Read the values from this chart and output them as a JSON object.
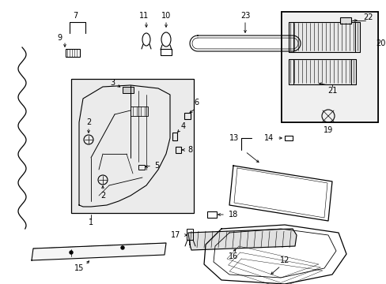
{
  "bg_color": "#ffffff",
  "line_color": "#000000",
  "fig_width": 4.89,
  "fig_height": 3.6,
  "dpi": 100,
  "font_size": 7.0
}
